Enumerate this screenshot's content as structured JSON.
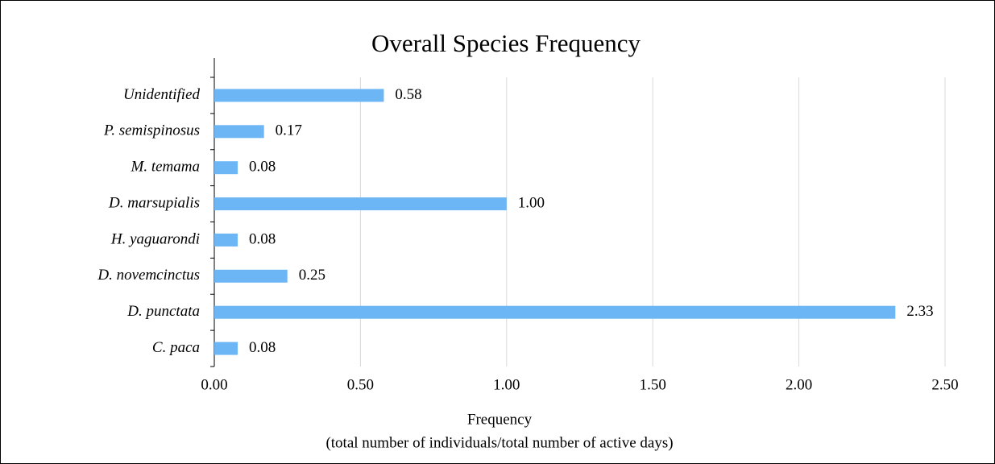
{
  "chart_data": {
    "type": "barh",
    "title": "Overall Species Frequency",
    "categories": [
      "Unidentified",
      "P. semispinosus",
      "M. temama",
      "D. marsupialis",
      "H. yaguarondi",
      "D. novemcinctus",
      "D. punctata",
      "C. paca"
    ],
    "values": [
      0.58,
      0.17,
      0.08,
      1.0,
      0.08,
      0.25,
      2.33,
      0.08
    ],
    "value_labels": [
      "0.58",
      "0.17",
      "0.08",
      "1.00",
      "0.08",
      "0.25",
      "2.33",
      "0.08"
    ],
    "color": "#6cb6f5",
    "xlim": [
      0,
      2.5
    ],
    "xticks": [
      {
        "value": 0,
        "label": "0.00"
      },
      {
        "value": 0.5,
        "label": "0.50"
      },
      {
        "value": 1,
        "label": "1.00"
      },
      {
        "value": 1.5,
        "label": "1.50"
      },
      {
        "value": 2,
        "label": "2.00"
      },
      {
        "value": 2.5,
        "label": "2.50"
      }
    ],
    "xlabel": [
      "Frequency",
      "(total number of individuals/total number of active days)"
    ],
    "grid": true
  }
}
